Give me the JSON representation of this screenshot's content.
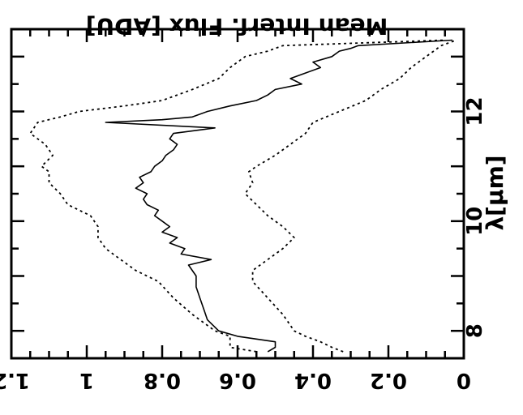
{
  "chart_data": {
    "type": "line",
    "orientation": "rotated-180",
    "title": "",
    "ylabel": "Mean Interf. Flux [ADU]",
    "xlabel": "λ[μm]",
    "xlim": [
      7.5,
      13.5
    ],
    "ylim": [
      0,
      1.2
    ],
    "x_ticks": [
      {
        "value": 8,
        "label": "8"
      },
      {
        "value": 10,
        "label": "10"
      },
      {
        "value": 12,
        "label": "12"
      }
    ],
    "y_ticks": [
      {
        "value": 0,
        "label": "0"
      },
      {
        "value": 0.2,
        "label": "0.2"
      },
      {
        "value": 0.4,
        "label": "0.4"
      },
      {
        "value": 0.6,
        "label": "0.6"
      },
      {
        "value": 0.8,
        "label": "0.8"
      },
      {
        "value": 1,
        "label": "1"
      },
      {
        "value": 1.2,
        "label": "1.2"
      }
    ],
    "grid": false,
    "series": [
      {
        "style": "solid",
        "x": [
          7.62,
          7.7,
          7.8,
          7.9,
          8.0,
          8.2,
          8.4,
          8.6,
          8.8,
          9.0,
          9.2,
          9.3,
          9.4,
          9.5,
          9.6,
          9.7,
          9.8,
          9.9,
          10.0,
          10.1,
          10.2,
          10.3,
          10.4,
          10.5,
          10.6,
          10.7,
          10.8,
          10.9,
          11.0,
          11.1,
          11.2,
          11.3,
          11.4,
          11.5,
          11.6,
          11.7,
          11.8,
          11.85,
          11.9,
          12.0,
          12.1,
          12.2,
          12.3,
          12.4,
          12.5,
          12.6,
          12.7,
          12.8,
          12.9,
          13.0,
          13.1,
          13.15,
          13.2,
          13.3
        ],
        "y": [
          0.52,
          0.5,
          0.5,
          0.6,
          0.65,
          0.68,
          0.69,
          0.7,
          0.71,
          0.71,
          0.73,
          0.67,
          0.75,
          0.74,
          0.78,
          0.76,
          0.8,
          0.78,
          0.8,
          0.82,
          0.81,
          0.84,
          0.85,
          0.84,
          0.87,
          0.85,
          0.86,
          0.83,
          0.82,
          0.8,
          0.79,
          0.77,
          0.76,
          0.78,
          0.77,
          0.66,
          0.95,
          0.8,
          0.72,
          0.68,
          0.62,
          0.55,
          0.52,
          0.5,
          0.43,
          0.46,
          0.42,
          0.38,
          0.4,
          0.35,
          0.33,
          0.3,
          0.28,
          0.03
        ]
      },
      {
        "style": "dotted",
        "x": [
          7.62,
          7.7,
          7.8,
          7.9,
          8.0,
          8.3,
          8.6,
          8.9,
          9.1,
          9.3,
          9.5,
          9.7,
          9.9,
          10.1,
          10.3,
          10.5,
          10.7,
          10.9,
          11.0,
          11.2,
          11.4,
          11.6,
          11.8,
          11.9,
          12.0,
          12.1,
          12.2,
          12.4,
          12.6,
          12.8,
          13.0,
          13.1,
          13.2,
          13.3
        ],
        "y": [
          0.55,
          0.62,
          0.62,
          0.62,
          0.66,
          0.72,
          0.77,
          0.81,
          0.87,
          0.91,
          0.95,
          0.97,
          0.97,
          0.99,
          1.05,
          1.07,
          1.1,
          1.1,
          1.12,
          1.09,
          1.11,
          1.15,
          1.13,
          1.07,
          1.02,
          0.9,
          0.8,
          0.72,
          0.65,
          0.62,
          0.58,
          0.52,
          0.48,
          0.05
        ]
      },
      {
        "style": "dotted",
        "x": [
          7.62,
          7.7,
          7.8,
          7.9,
          8.0,
          8.3,
          8.6,
          8.9,
          9.1,
          9.3,
          9.5,
          9.7,
          9.9,
          10.1,
          10.3,
          10.5,
          10.7,
          10.9,
          11.0,
          11.2,
          11.4,
          11.6,
          11.8,
          12.0,
          12.2,
          12.4,
          12.6,
          12.8,
          13.0,
          13.1,
          13.2,
          13.3
        ],
        "y": [
          0.32,
          0.35,
          0.38,
          0.42,
          0.45,
          0.48,
          0.52,
          0.56,
          0.56,
          0.52,
          0.48,
          0.45,
          0.48,
          0.52,
          0.55,
          0.58,
          0.56,
          0.57,
          0.55,
          0.5,
          0.46,
          0.42,
          0.4,
          0.33,
          0.26,
          0.22,
          0.17,
          0.14,
          0.1,
          0.08,
          0.06,
          0.02
        ]
      }
    ]
  }
}
